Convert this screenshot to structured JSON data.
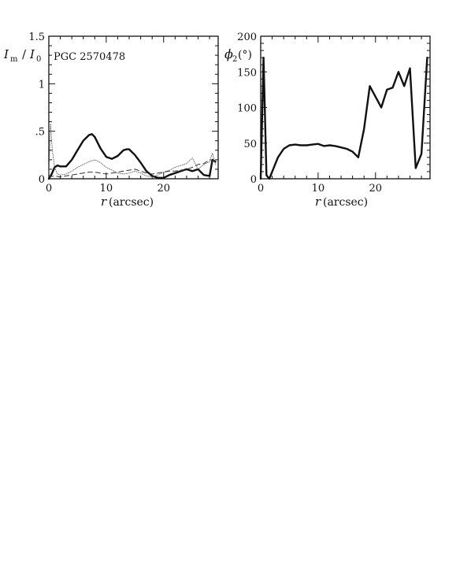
{
  "chart_data": [
    {
      "type": "line",
      "annotation": "PGC 2570478",
      "xlabel_symbol": "r",
      "xlabel_unit": "(arcsec)",
      "ylabel_symbol_1": "I",
      "ylabel_sub_1": "m",
      "ylabel_symbol_2": "I",
      "ylabel_sub_2": "0",
      "xlim": [
        0,
        29.5
      ],
      "ylim": [
        0,
        1.5
      ],
      "x_ticks": [
        0,
        10,
        20
      ],
      "x_tick_labels": [
        "0",
        "10",
        "20"
      ],
      "y_ticks": [
        0,
        0.5,
        1,
        1.5
      ],
      "y_tick_labels": [
        "0",
        ".5",
        "1",
        "1.5"
      ],
      "series": [
        {
          "style": "thick",
          "color": "#111111",
          "x": [
            0,
            0.5,
            1,
            1.5,
            2,
            3,
            4,
            5,
            6,
            7,
            7.5,
            8,
            9,
            10,
            11,
            12,
            13,
            13.5,
            14,
            15,
            16,
            17,
            18,
            19,
            20,
            21,
            22,
            23,
            24,
            25,
            26,
            27,
            28,
            28.5,
            29
          ],
          "y": [
            0.0,
            0.05,
            0.12,
            0.14,
            0.13,
            0.13,
            0.2,
            0.3,
            0.4,
            0.46,
            0.47,
            0.44,
            0.32,
            0.23,
            0.21,
            0.24,
            0.3,
            0.31,
            0.31,
            0.25,
            0.17,
            0.08,
            0.03,
            0.01,
            0.01,
            0.04,
            0.06,
            0.08,
            0.1,
            0.08,
            0.1,
            0.04,
            0.03,
            0.2,
            0.18
          ]
        },
        {
          "style": "thin",
          "color": "#555555",
          "x": [
            0,
            0.3,
            0.6,
            1,
            1.5,
            2,
            3,
            4,
            5,
            6,
            7,
            8,
            9,
            10,
            11,
            12,
            13,
            14,
            15,
            16,
            17,
            18,
            19,
            20,
            21,
            22,
            23,
            24,
            25,
            26,
            27,
            28,
            28.5,
            29
          ],
          "y": [
            0.05,
            0.58,
            0.3,
            0.12,
            0.05,
            0.04,
            0.05,
            0.08,
            0.12,
            0.15,
            0.18,
            0.2,
            0.17,
            0.12,
            0.09,
            0.06,
            0.05,
            0.06,
            0.08,
            0.06,
            0.03,
            0.02,
            0.04,
            0.07,
            0.09,
            0.12,
            0.14,
            0.16,
            0.22,
            0.1,
            0.15,
            0.18,
            0.27,
            0.15
          ]
        },
        {
          "style": "dashed",
          "color": "#333333",
          "x": [
            0,
            1,
            2,
            3,
            4,
            5,
            6,
            7,
            8,
            9,
            10,
            11,
            12,
            13,
            14,
            15,
            16,
            17,
            18,
            19,
            20,
            21,
            22,
            23,
            24,
            25,
            26,
            27,
            28,
            29
          ],
          "y": [
            0.02,
            0.03,
            0.02,
            0.03,
            0.04,
            0.05,
            0.06,
            0.07,
            0.07,
            0.06,
            0.05,
            0.06,
            0.07,
            0.08,
            0.09,
            0.1,
            0.08,
            0.06,
            0.05,
            0.06,
            0.07,
            0.08,
            0.08,
            0.09,
            0.1,
            0.12,
            0.15,
            0.16,
            0.2,
            0.19
          ]
        }
      ]
    },
    {
      "type": "line",
      "xlabel_symbol": "r",
      "xlabel_unit": "(arcsec)",
      "ylabel_symbol": "ϕ",
      "ylabel_sub": "2",
      "ylabel_unit": "(°)",
      "xlim": [
        0,
        29.5
      ],
      "ylim": [
        0,
        200
      ],
      "x_ticks": [
        0,
        10,
        20
      ],
      "x_tick_labels": [
        "0",
        "10",
        "20"
      ],
      "y_ticks": [
        0,
        50,
        100,
        150,
        200
      ],
      "y_tick_labels": [
        "0",
        "50",
        "100",
        "150",
        "200"
      ],
      "series": [
        {
          "style": "thick",
          "color": "#111111",
          "x": [
            0,
            0.5,
            1,
            1.5,
            2,
            3,
            4,
            5,
            6,
            7,
            8,
            9,
            10,
            11,
            12,
            13,
            14,
            15,
            16,
            17,
            18,
            19,
            20,
            21,
            22,
            23,
            24,
            25,
            26,
            27,
            28,
            29
          ],
          "y": [
            0,
            170,
            5,
            0,
            10,
            30,
            42,
            47,
            48,
            47,
            47,
            48,
            49,
            46,
            47,
            46,
            44,
            42,
            38,
            30,
            70,
            130,
            115,
            100,
            125,
            128,
            150,
            130,
            155,
            15,
            35,
            170
          ]
        }
      ]
    }
  ]
}
